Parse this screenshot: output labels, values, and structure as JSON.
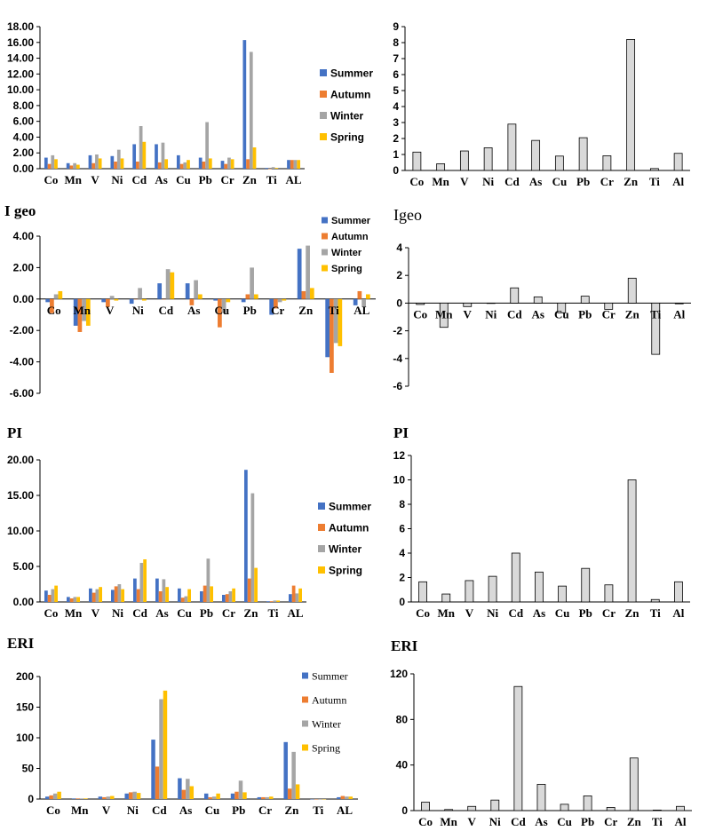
{
  "panel_titles": [
    "I geo",
    "Igeo",
    "PI",
    "PI",
    "ERI",
    "ERI"
  ],
  "series_colors": {
    "Summer": "#4472C4",
    "Autumn": "#ED7D31",
    "Winter": "#A5A5A5",
    "Spring": "#FFC000"
  },
  "mean_bar_color": "#D9D9D9",
  "chart_data": [
    {
      "id": "seasonal-top",
      "type": "bar",
      "categories": [
        "Co",
        "Mn",
        "V",
        "Ni",
        "Cd",
        "As",
        "Cu",
        "Pb",
        "Cr",
        "Zn",
        "Ti",
        "AL"
      ],
      "ylim": [
        0,
        18
      ],
      "yticks": [
        "0.00",
        "2.00",
        "4.00",
        "6.00",
        "8.00",
        "10.00",
        "12.00",
        "14.00",
        "16.00",
        "18.00"
      ],
      "legend_position": "right",
      "series": [
        {
          "name": "Summer",
          "values": [
            1.4,
            0.7,
            1.7,
            1.6,
            3.1,
            3.1,
            1.7,
            1.4,
            1.0,
            16.3,
            0.1,
            1.1
          ]
        },
        {
          "name": "Autumn",
          "values": [
            0.6,
            0.4,
            0.7,
            0.9,
            0.9,
            0.8,
            0.6,
            0.9,
            0.6,
            1.2,
            0.0,
            1.1
          ]
        },
        {
          "name": "Winter",
          "values": [
            1.7,
            0.7,
            1.8,
            2.4,
            5.4,
            3.3,
            0.8,
            5.9,
            1.4,
            14.8,
            0.2,
            1.1
          ]
        },
        {
          "name": "Spring",
          "values": [
            1.2,
            0.5,
            1.3,
            1.3,
            3.4,
            1.2,
            1.1,
            1.3,
            1.2,
            2.7,
            0.1,
            1.1
          ]
        }
      ]
    },
    {
      "id": "mean-top",
      "type": "bar",
      "categories": [
        "Co",
        "Mn",
        "V",
        "Ni",
        "Cd",
        "As",
        "Cu",
        "Pb",
        "Cr",
        "Zn",
        "Ti",
        "Al"
      ],
      "ylim": [
        0,
        9
      ],
      "yticks": [
        "0",
        "1",
        "2",
        "3",
        "4",
        "5",
        "6",
        "7",
        "8",
        "9"
      ],
      "series": [
        {
          "values": [
            1.15,
            0.42,
            1.22,
            1.42,
            2.9,
            1.88,
            0.9,
            2.05,
            0.92,
            8.2,
            0.12,
            1.07
          ]
        }
      ]
    },
    {
      "id": "seasonal-igeo",
      "type": "bar",
      "categories": [
        "Co",
        "Mn",
        "V",
        "Ni",
        "Cd",
        "As",
        "Cu",
        "Pb",
        "Cr",
        "Zn",
        "Ti",
        "AL"
      ],
      "ylim": [
        -6,
        4
      ],
      "yticks": [
        "-6.00",
        "-4.00",
        "-2.00",
        "0.00",
        "2.00",
        "4.00"
      ],
      "legend_position": "top-right",
      "series": [
        {
          "name": "Summer",
          "values": [
            -0.2,
            -1.7,
            -0.2,
            -0.3,
            1.0,
            1.0,
            -0.1,
            -0.2,
            -1.0,
            3.2,
            -3.7,
            -0.4
          ]
        },
        {
          "name": "Autumn",
          "values": [
            -0.9,
            -2.1,
            -0.5,
            0.0,
            0.0,
            -0.4,
            -1.8,
            0.3,
            -0.6,
            0.5,
            -4.7,
            0.5
          ]
        },
        {
          "name": "Winter",
          "values": [
            0.3,
            -1.4,
            0.2,
            0.7,
            1.9,
            1.2,
            -0.9,
            2.0,
            -0.2,
            3.4,
            -2.8,
            -0.5
          ]
        },
        {
          "name": "Spring",
          "values": [
            0.5,
            -1.7,
            -0.1,
            -0.1,
            1.7,
            0.3,
            -0.2,
            0.3,
            -0.1,
            0.7,
            -3.0,
            0.3
          ]
        }
      ]
    },
    {
      "id": "mean-igeo",
      "type": "bar",
      "categories": [
        "Co",
        "Mn",
        "V",
        "Ni",
        "Cd",
        "As",
        "Cu",
        "Pb",
        "Cr",
        "Zn",
        "Ti",
        "Al"
      ],
      "ylim": [
        -6,
        4
      ],
      "yticks": [
        "-6",
        "-4",
        "-2",
        "0",
        "2",
        "4"
      ],
      "series": [
        {
          "values": [
            -0.1,
            -1.75,
            -0.25,
            0.0,
            1.1,
            0.45,
            -0.7,
            0.5,
            -0.45,
            1.8,
            -3.7,
            -0.05
          ]
        }
      ]
    },
    {
      "id": "seasonal-pi",
      "type": "bar",
      "categories": [
        "Co",
        "Mn",
        "V",
        "Ni",
        "Cd",
        "As",
        "Cu",
        "Pb",
        "Cr",
        "Zn",
        "Ti",
        "AL"
      ],
      "ylim": [
        0,
        20
      ],
      "yticks": [
        "0.00",
        "5.00",
        "10.00",
        "15.00",
        "20.00"
      ],
      "legend_position": "right",
      "series": [
        {
          "name": "Summer",
          "values": [
            1.6,
            0.7,
            1.9,
            1.7,
            3.3,
            3.3,
            1.9,
            1.5,
            1.0,
            18.6,
            0.1,
            1.1
          ]
        },
        {
          "name": "Autumn",
          "values": [
            1.0,
            0.5,
            1.3,
            2.2,
            1.8,
            1.5,
            0.6,
            2.3,
            1.1,
            3.3,
            0.1,
            2.3
          ]
        },
        {
          "name": "Winter",
          "values": [
            1.8,
            0.7,
            1.8,
            2.5,
            5.5,
            3.2,
            0.8,
            6.1,
            1.5,
            15.3,
            0.2,
            1.2
          ]
        },
        {
          "name": "Spring",
          "values": [
            2.3,
            0.7,
            2.1,
            1.8,
            6.0,
            2.1,
            1.8,
            2.2,
            1.9,
            4.8,
            0.2,
            1.9
          ]
        }
      ]
    },
    {
      "id": "mean-pi",
      "type": "bar",
      "categories": [
        "Co",
        "Mn",
        "V",
        "Ni",
        "Cd",
        "As",
        "Cu",
        "Pb",
        "Cr",
        "Zn",
        "Ti",
        "Al"
      ],
      "ylim": [
        0,
        12
      ],
      "yticks": [
        "0",
        "2",
        "4",
        "6",
        "8",
        "10",
        "12"
      ],
      "series": [
        {
          "values": [
            1.65,
            0.65,
            1.75,
            2.1,
            4.0,
            2.45,
            1.3,
            2.75,
            1.4,
            10.0,
            0.2,
            1.65
          ]
        }
      ]
    },
    {
      "id": "seasonal-eri",
      "type": "bar",
      "categories": [
        "Co",
        "Mn",
        "V",
        "Ni",
        "Cd",
        "As",
        "Cu",
        "Pb",
        "Cr",
        "Zn",
        "Ti",
        "AL"
      ],
      "ylim": [
        0,
        200
      ],
      "yticks": [
        "0",
        "50",
        "100",
        "150",
        "200"
      ],
      "legend_position": "top-right",
      "series": [
        {
          "name": "Summer",
          "values": [
            4,
            1,
            4,
            9,
            97,
            34,
            9,
            9,
            3,
            93,
            0,
            3
          ]
        },
        {
          "name": "Autumn",
          "values": [
            6,
            1,
            3,
            11,
            53,
            15,
            3,
            12,
            3,
            17,
            0,
            5
          ]
        },
        {
          "name": "Winter",
          "values": [
            9,
            1,
            4,
            12,
            163,
            33,
            4,
            30,
            3,
            77,
            0,
            4
          ]
        },
        {
          "name": "Spring",
          "values": [
            12,
            1,
            5,
            10,
            177,
            21,
            9,
            11,
            4,
            24,
            0,
            4
          ]
        }
      ]
    },
    {
      "id": "mean-eri",
      "type": "bar",
      "categories": [
        "Co",
        "Mn",
        "V",
        "Ni",
        "Cd",
        "As",
        "Cu",
        "Pb",
        "Cr",
        "Zn",
        "Ti",
        "Al"
      ],
      "ylim": [
        0,
        130
      ],
      "yticks": [
        "0",
        "40",
        "80",
        "120"
      ],
      "series": [
        {
          "values": [
            8,
            1,
            4,
            10,
            118,
            25,
            6,
            14,
            3,
            50,
            0.5,
            4
          ]
        }
      ]
    }
  ]
}
